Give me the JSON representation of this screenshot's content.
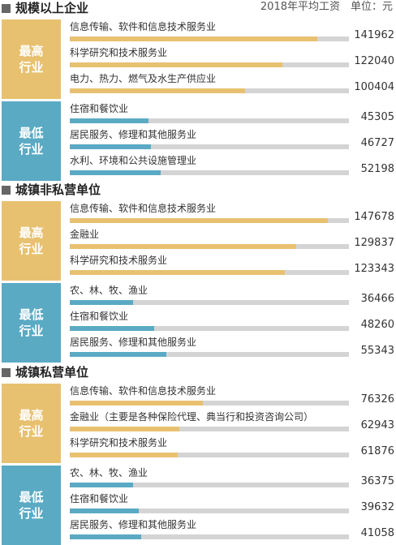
{
  "header": {
    "unit_note": "2018年平均工资　单位：元"
  },
  "colors": {
    "high": "#e8c170",
    "low": "#5aaac4",
    "track": "#d4d4d4"
  },
  "chart_data": {
    "type": "bar",
    "orientation": "horizontal",
    "unit": "元",
    "xlim": [
      0,
      160000
    ],
    "sections": [
      {
        "title": "规模以上企业",
        "groups": [
          {
            "label": "最高行业",
            "kind": "high",
            "items": [
              {
                "name": "信息传输、软件和信息技术服务业",
                "value": 141962
              },
              {
                "name": "科学研究和技术服务业",
                "value": 122040
              },
              {
                "name": "电力、热力、燃气及水生产供应业",
                "value": 100404
              }
            ]
          },
          {
            "label": "最低行业",
            "kind": "low",
            "items": [
              {
                "name": "住宿和餐饮业",
                "value": 45305
              },
              {
                "name": "居民服务、修理和其他服务业",
                "value": 46727
              },
              {
                "name": "水利、环境和公共设施管理业",
                "value": 52198
              }
            ]
          }
        ]
      },
      {
        "title": "城镇非私营单位",
        "groups": [
          {
            "label": "最高行业",
            "kind": "high",
            "items": [
              {
                "name": "信息传输、软件和信息技术服务业",
                "value": 147678
              },
              {
                "name": "金融业",
                "value": 129837
              },
              {
                "name": "科学研究和技术服务业",
                "value": 123343
              }
            ]
          },
          {
            "label": "最低行业",
            "kind": "low",
            "items": [
              {
                "name": "农、林、牧、渔业",
                "value": 36466
              },
              {
                "name": "住宿和餐饮业",
                "value": 48260
              },
              {
                "name": "居民服务、修理和其他服务业",
                "value": 55343
              }
            ]
          }
        ]
      },
      {
        "title": "城镇私营单位",
        "groups": [
          {
            "label": "最高行业",
            "kind": "high",
            "items": [
              {
                "name": "信息传输、软件和信息技术服务业",
                "value": 76326
              },
              {
                "name": "金融业（主要是各种保险代理、典当行和投资咨询公司）",
                "value": 62943
              },
              {
                "name": "科学研究和技术服务业",
                "value": 61876
              }
            ]
          },
          {
            "label": "最低行业",
            "kind": "low",
            "items": [
              {
                "name": "农、林、牧、渔业",
                "value": 36375
              },
              {
                "name": "住宿和餐饮业",
                "value": 39632
              },
              {
                "name": "居民服务、修理和其他服务业",
                "value": 41058
              }
            ]
          }
        ]
      }
    ]
  }
}
